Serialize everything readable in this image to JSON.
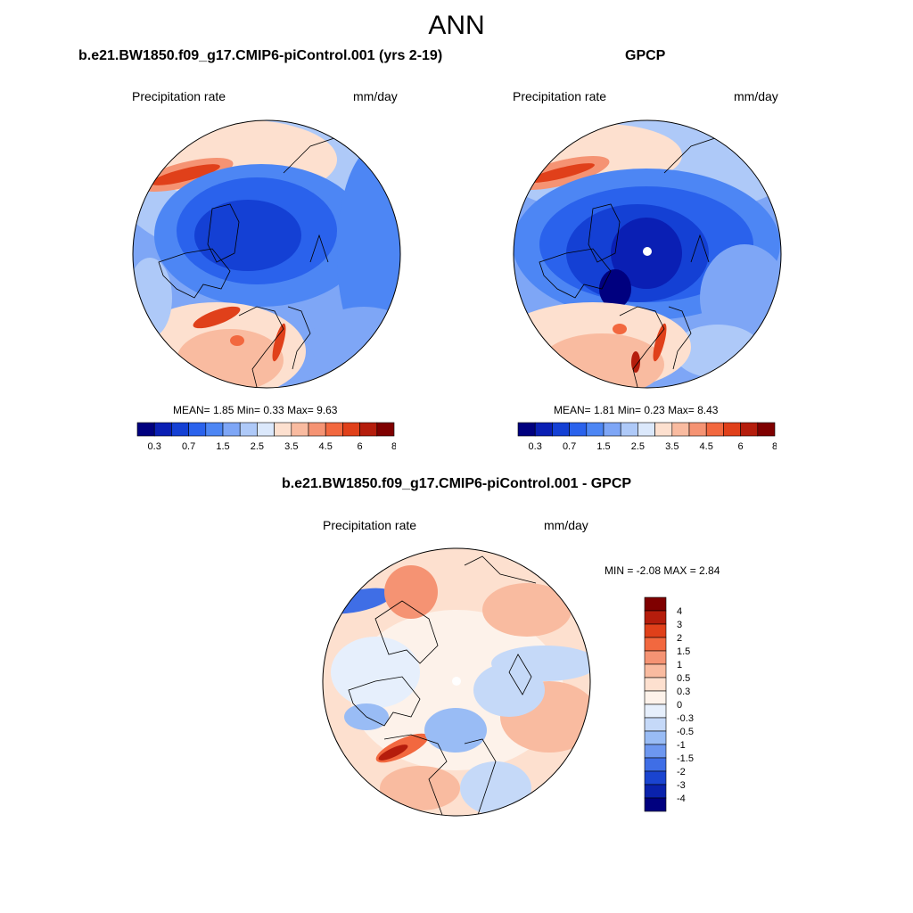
{
  "figure": {
    "title": "ANN"
  },
  "panels": [
    {
      "case_title": "b.e21.BW1850.f09_g17.CMIP6-piControl.001 (yrs 2-19)",
      "left_label": "Precipitation rate",
      "right_label": "mm/day",
      "stats": "MEAN=   1.85  Min=   0.33  Max=   9.63",
      "colorbar": {
        "colors": [
          "#00007f",
          "#0a1fb4",
          "#1440d4",
          "#2a62ec",
          "#4d86f4",
          "#7ea6f6",
          "#aec9f8",
          "#dbe8fb",
          "#fde0cf",
          "#f9bba0",
          "#f59373",
          "#f2683f",
          "#e0401a",
          "#b51d0c",
          "#7f0000"
        ],
        "tick_labels": [
          "0.3",
          "0.7",
          "1.5",
          "2.5",
          "3.5",
          "4.5",
          "6",
          "8"
        ]
      }
    },
    {
      "case_title": "GPCP",
      "left_label": "Precipitation rate",
      "right_label": "mm/day",
      "stats": "MEAN=   1.81  Min=   0.23  Max=   8.43",
      "colorbar": {
        "colors": [
          "#00007f",
          "#0a1fb4",
          "#1440d4",
          "#2a62ec",
          "#4d86f4",
          "#7ea6f6",
          "#aec9f8",
          "#dbe8fb",
          "#fde0cf",
          "#f9bba0",
          "#f59373",
          "#f2683f",
          "#e0401a",
          "#b51d0c",
          "#7f0000"
        ],
        "tick_labels": [
          "0.3",
          "0.7",
          "1.5",
          "2.5",
          "3.5",
          "4.5",
          "6",
          "8"
        ]
      }
    },
    {
      "case_title": "b.e21.BW1850.f09_g17.CMIP6-piControl.001 - GPCP",
      "left_label": "Precipitation rate",
      "right_label": "mm/day",
      "stats": "MIN =  -2.08 MAX =   2.84",
      "colorbar": {
        "colors": [
          "#7f0000",
          "#b51d0c",
          "#e0401a",
          "#f2683f",
          "#f59373",
          "#f9bba0",
          "#fde0cf",
          "#fdf2ea",
          "#e6effc",
          "#c5d9f8",
          "#99bcf5",
          "#6d97f0",
          "#3f6ee6",
          "#1a44d0",
          "#0a22ac",
          "#00007f"
        ],
        "tick_labels": [
          "4",
          "3",
          "2",
          "1.5",
          "1",
          "0.5",
          "0.3",
          "0",
          "-0.3",
          "-0.5",
          "-1",
          "-1.5",
          "-2",
          "-3",
          "-4"
        ]
      }
    }
  ]
}
